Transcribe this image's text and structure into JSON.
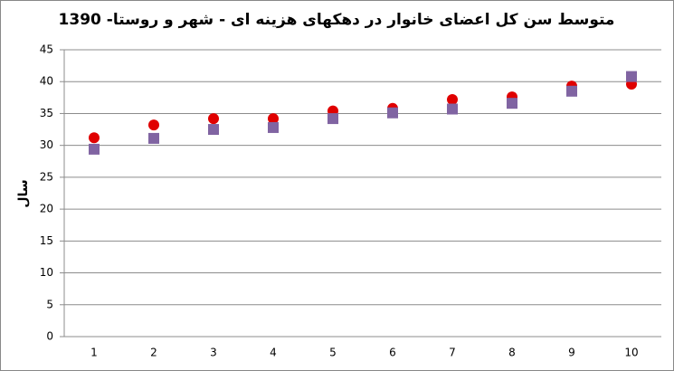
{
  "chart_data": {
    "type": "scatter",
    "title": "متوسط سن کل اعضای خانوار در دهکهای هزینه ای - شهر و روستا- 1390",
    "y_label": "سال",
    "categories": [
      "1",
      "2",
      "3",
      "4",
      "5",
      "6",
      "7",
      "8",
      "9",
      "10"
    ],
    "series": [
      {
        "color": "#e00000",
        "marker": "circle",
        "values": [
          31.2,
          33.2,
          34.2,
          34.2,
          35.4,
          35.8,
          37.2,
          37.6,
          39.3,
          39.6
        ]
      },
      {
        "color": "#8064a2",
        "marker": "square",
        "values": [
          29.4,
          31.1,
          32.5,
          32.8,
          34.2,
          35.1,
          35.7,
          36.6,
          38.5,
          40.8
        ]
      }
    ],
    "ylim": [
      0,
      45
    ],
    "yticks": [
      0,
      5,
      10,
      15,
      20,
      25,
      30,
      35,
      40,
      45
    ],
    "grid": true
  }
}
